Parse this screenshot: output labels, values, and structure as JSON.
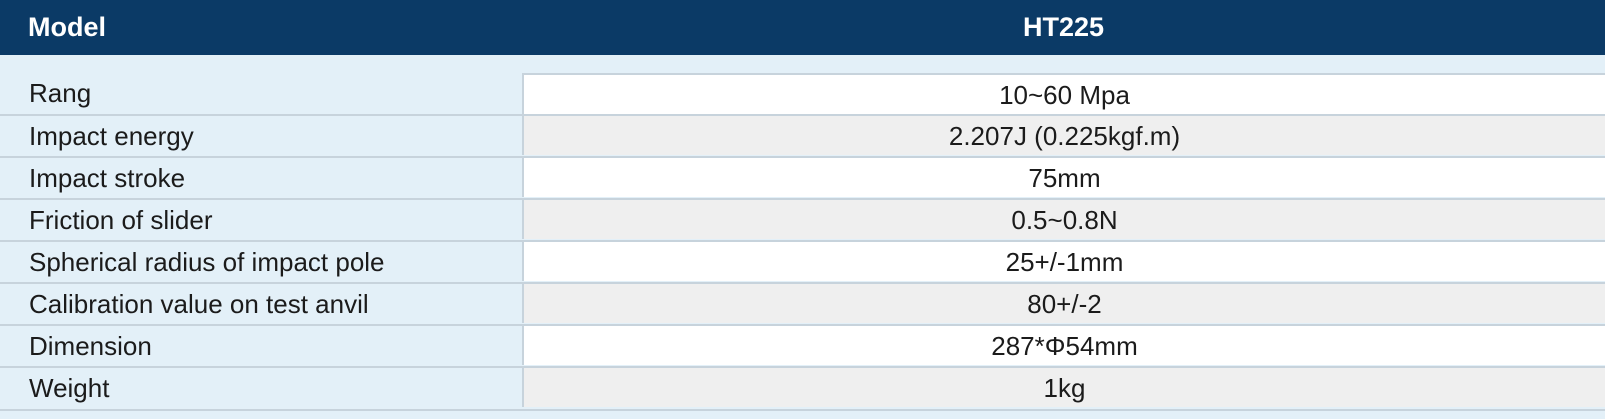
{
  "header": {
    "model_label": "Model",
    "model_value": "HT225"
  },
  "rows": [
    {
      "label": "Rang",
      "value": "10~60 Mpa"
    },
    {
      "label": "Impact energy",
      "value": "2.207J (0.225kgf.m)"
    },
    {
      "label": "Impact stroke",
      "value": "75mm"
    },
    {
      "label": "Friction of slider",
      "value": "0.5~0.8N"
    },
    {
      "label": "Spherical radius of impact pole",
      "value": "25+/-1mm"
    },
    {
      "label": "Calibration value on test anvil",
      "value": "80+/-2"
    },
    {
      "label": "Dimension",
      "value": "287*Φ54mm"
    },
    {
      "label": "Weight",
      "value": "1kg"
    }
  ],
  "colors": {
    "header_bg": "#0b3a66",
    "label_col_bg": "#e3f0f8",
    "row_light": "#ffffff",
    "row_grey": "#efefef"
  }
}
